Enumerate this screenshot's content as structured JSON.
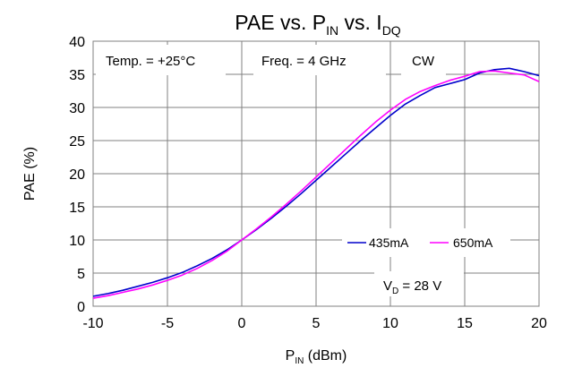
{
  "chart_data": {
    "type": "line",
    "title": {
      "main": "PAE vs. P",
      "sub1": "IN",
      "mid": " vs. I",
      "sub2": "DQ"
    },
    "xlabel": {
      "main": "P",
      "sub": "IN",
      "rest": " (dBm)"
    },
    "ylabel": "PAE (%)",
    "xlim": [
      -10,
      20
    ],
    "ylim": [
      0,
      40
    ],
    "x_ticks": [
      -10,
      -5,
      0,
      5,
      10,
      15,
      20
    ],
    "y_ticks": [
      0,
      5,
      10,
      15,
      20,
      25,
      30,
      35,
      40
    ],
    "grid": true,
    "annotations": {
      "temp": "Temp. = +25°C",
      "freq": "Freq. = 4 GHz",
      "mode": "CW",
      "vd": {
        "main": "V",
        "sub": "D",
        "rest": " = 28 V"
      }
    },
    "legend_position": "lower-right",
    "series": [
      {
        "name": "435mA",
        "color": "#0000cc",
        "x": [
          -10,
          -9,
          -8,
          -7,
          -6,
          -5,
          -4,
          -3,
          -2,
          -1,
          0,
          1,
          2,
          3,
          4,
          5,
          6,
          7,
          8,
          9,
          10,
          11,
          12,
          13,
          14,
          15,
          16,
          17,
          18,
          19,
          20
        ],
        "y": [
          1.5,
          1.9,
          2.4,
          3.0,
          3.6,
          4.3,
          5.1,
          6.1,
          7.2,
          8.5,
          10.0,
          11.6,
          13.3,
          15.1,
          17.0,
          19.0,
          21.0,
          23.0,
          25.0,
          26.9,
          28.8,
          30.5,
          31.8,
          33.0,
          33.6,
          34.2,
          35.2,
          35.7,
          35.9,
          35.4,
          34.8
        ]
      },
      {
        "name": "650mA",
        "color": "#ff00ff",
        "x": [
          -10,
          -9,
          -8,
          -7,
          -6,
          -5,
          -4,
          -3,
          -2,
          -1,
          0,
          1,
          2,
          3,
          4,
          5,
          6,
          7,
          8,
          9,
          10,
          11,
          12,
          13,
          14,
          15,
          16,
          17,
          18,
          19,
          20
        ],
        "y": [
          1.2,
          1.6,
          2.1,
          2.6,
          3.2,
          3.9,
          4.7,
          5.7,
          6.9,
          8.3,
          10.0,
          11.7,
          13.5,
          15.4,
          17.4,
          19.5,
          21.6,
          23.7,
          25.8,
          27.8,
          29.6,
          31.2,
          32.4,
          33.3,
          34.1,
          34.7,
          35.4,
          35.5,
          35.2,
          34.9,
          33.9
        ]
      }
    ]
  }
}
